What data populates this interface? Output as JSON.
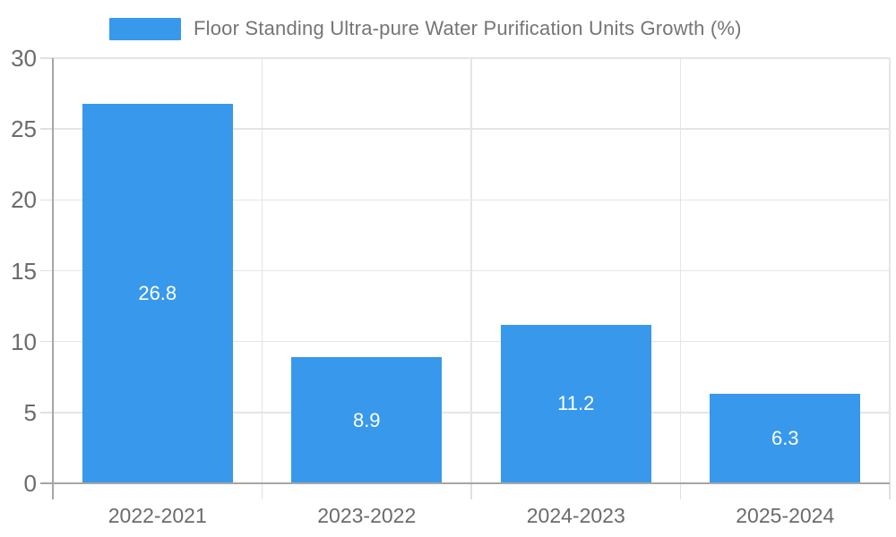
{
  "legend": {
    "label": "Floor Standing Ultra-pure Water Purification Units Growth (%)"
  },
  "chart_data": {
    "type": "bar",
    "title": "Floor Standing Ultra-pure Water Purification Units Growth (%)",
    "categories": [
      "2022-2021",
      "2023-2022",
      "2024-2023",
      "2025-2024"
    ],
    "values": [
      26.8,
      8.9,
      11.2,
      6.3
    ],
    "value_labels": [
      "26.8",
      "8.9",
      "11.2",
      "6.3"
    ],
    "xlabel": "",
    "ylabel": "",
    "ylim": [
      0,
      30
    ],
    "yticks": [
      0,
      5,
      10,
      15,
      20,
      25,
      30
    ],
    "grid": true,
    "legend_position": "top-left",
    "value_labels_inside_bars": true
  },
  "colors": {
    "bar": "#3898ec",
    "legend_text": "#757575",
    "axis_text": "#6b6b6b",
    "grid_line": "#e5e5e5",
    "tick_line": "#e0e0e0",
    "axis_line": "#a6a6a6",
    "value_text": "#ffffff",
    "background": "#ffffff"
  }
}
